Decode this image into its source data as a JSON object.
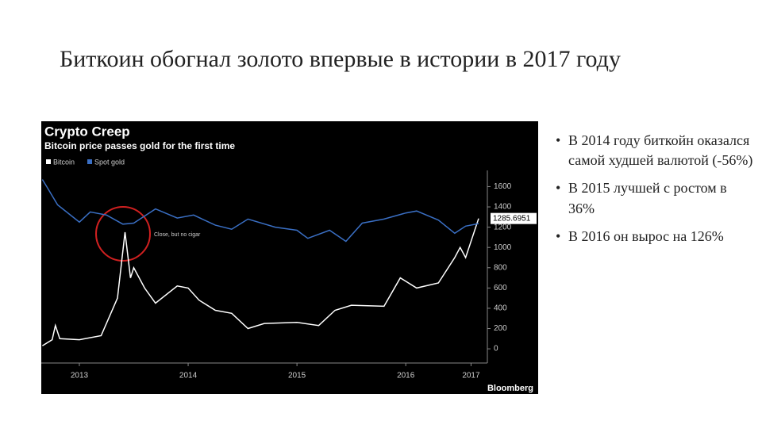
{
  "slide": {
    "title": "Биткоин обогнал золото впервые в истории в 2017 году",
    "bullets": [
      "В 2014 году биткойн оказался самой худшей валютой (-56%)",
      "В 2015 лучшей с ростом в 36%",
      "В 2016 он вырос на 126%"
    ]
  },
  "chart_data": {
    "type": "line",
    "title": "Crypto Creep",
    "subtitle": "Bitcoin price passes gold for the first time",
    "source": "Bloomberg",
    "annotation": "Close, but no cigar",
    "xlim": [
      2013.15,
      2017.25
    ],
    "xticks": [
      {
        "value": 2013.5,
        "label": "2013"
      },
      {
        "value": 2014.5,
        "label": "2014"
      },
      {
        "value": 2015.5,
        "label": "2015"
      },
      {
        "value": 2016.5,
        "label": "2016"
      },
      {
        "value": 2017.1,
        "label": "2017"
      }
    ],
    "ylim": [
      -140,
      1760
    ],
    "yticks": [
      0,
      200,
      400,
      600,
      800,
      1000,
      1200,
      1400,
      1600
    ],
    "series": [
      {
        "name": "Bitcoin",
        "color": "#ffffff",
        "x": [
          2013.16,
          2013.25,
          2013.28,
          2013.32,
          2013.5,
          2013.7,
          2013.85,
          2013.92,
          2013.97,
          2014.0,
          2014.1,
          2014.2,
          2014.4,
          2014.5,
          2014.6,
          2014.75,
          2014.9,
          2015.05,
          2015.2,
          2015.5,
          2015.7,
          2015.85,
          2016.0,
          2016.3,
          2016.45,
          2016.6,
          2016.8,
          2016.95,
          2017.0,
          2017.05,
          2017.17
        ],
        "values": [
          30,
          90,
          230,
          100,
          90,
          130,
          500,
          1150,
          700,
          800,
          600,
          450,
          620,
          600,
          480,
          380,
          350,
          200,
          250,
          260,
          230,
          380,
          430,
          420,
          700,
          600,
          650,
          900,
          1000,
          900,
          1285.6951
        ]
      },
      {
        "name": "Spot gold",
        "color": "#3a6fc4",
        "x": [
          2013.16,
          2013.2,
          2013.3,
          2013.5,
          2013.6,
          2013.75,
          2013.9,
          2014.0,
          2014.2,
          2014.4,
          2014.55,
          2014.75,
          2014.9,
          2015.05,
          2015.3,
          2015.5,
          2015.6,
          2015.8,
          2015.95,
          2016.1,
          2016.3,
          2016.5,
          2016.6,
          2016.8,
          2016.95,
          2017.05,
          2017.17
        ],
        "values": [
          1670,
          1600,
          1420,
          1250,
          1350,
          1320,
          1230,
          1240,
          1380,
          1290,
          1320,
          1220,
          1180,
          1280,
          1200,
          1170,
          1090,
          1170,
          1060,
          1240,
          1280,
          1340,
          1360,
          1270,
          1140,
          1210,
          1235
        ]
      }
    ]
  }
}
